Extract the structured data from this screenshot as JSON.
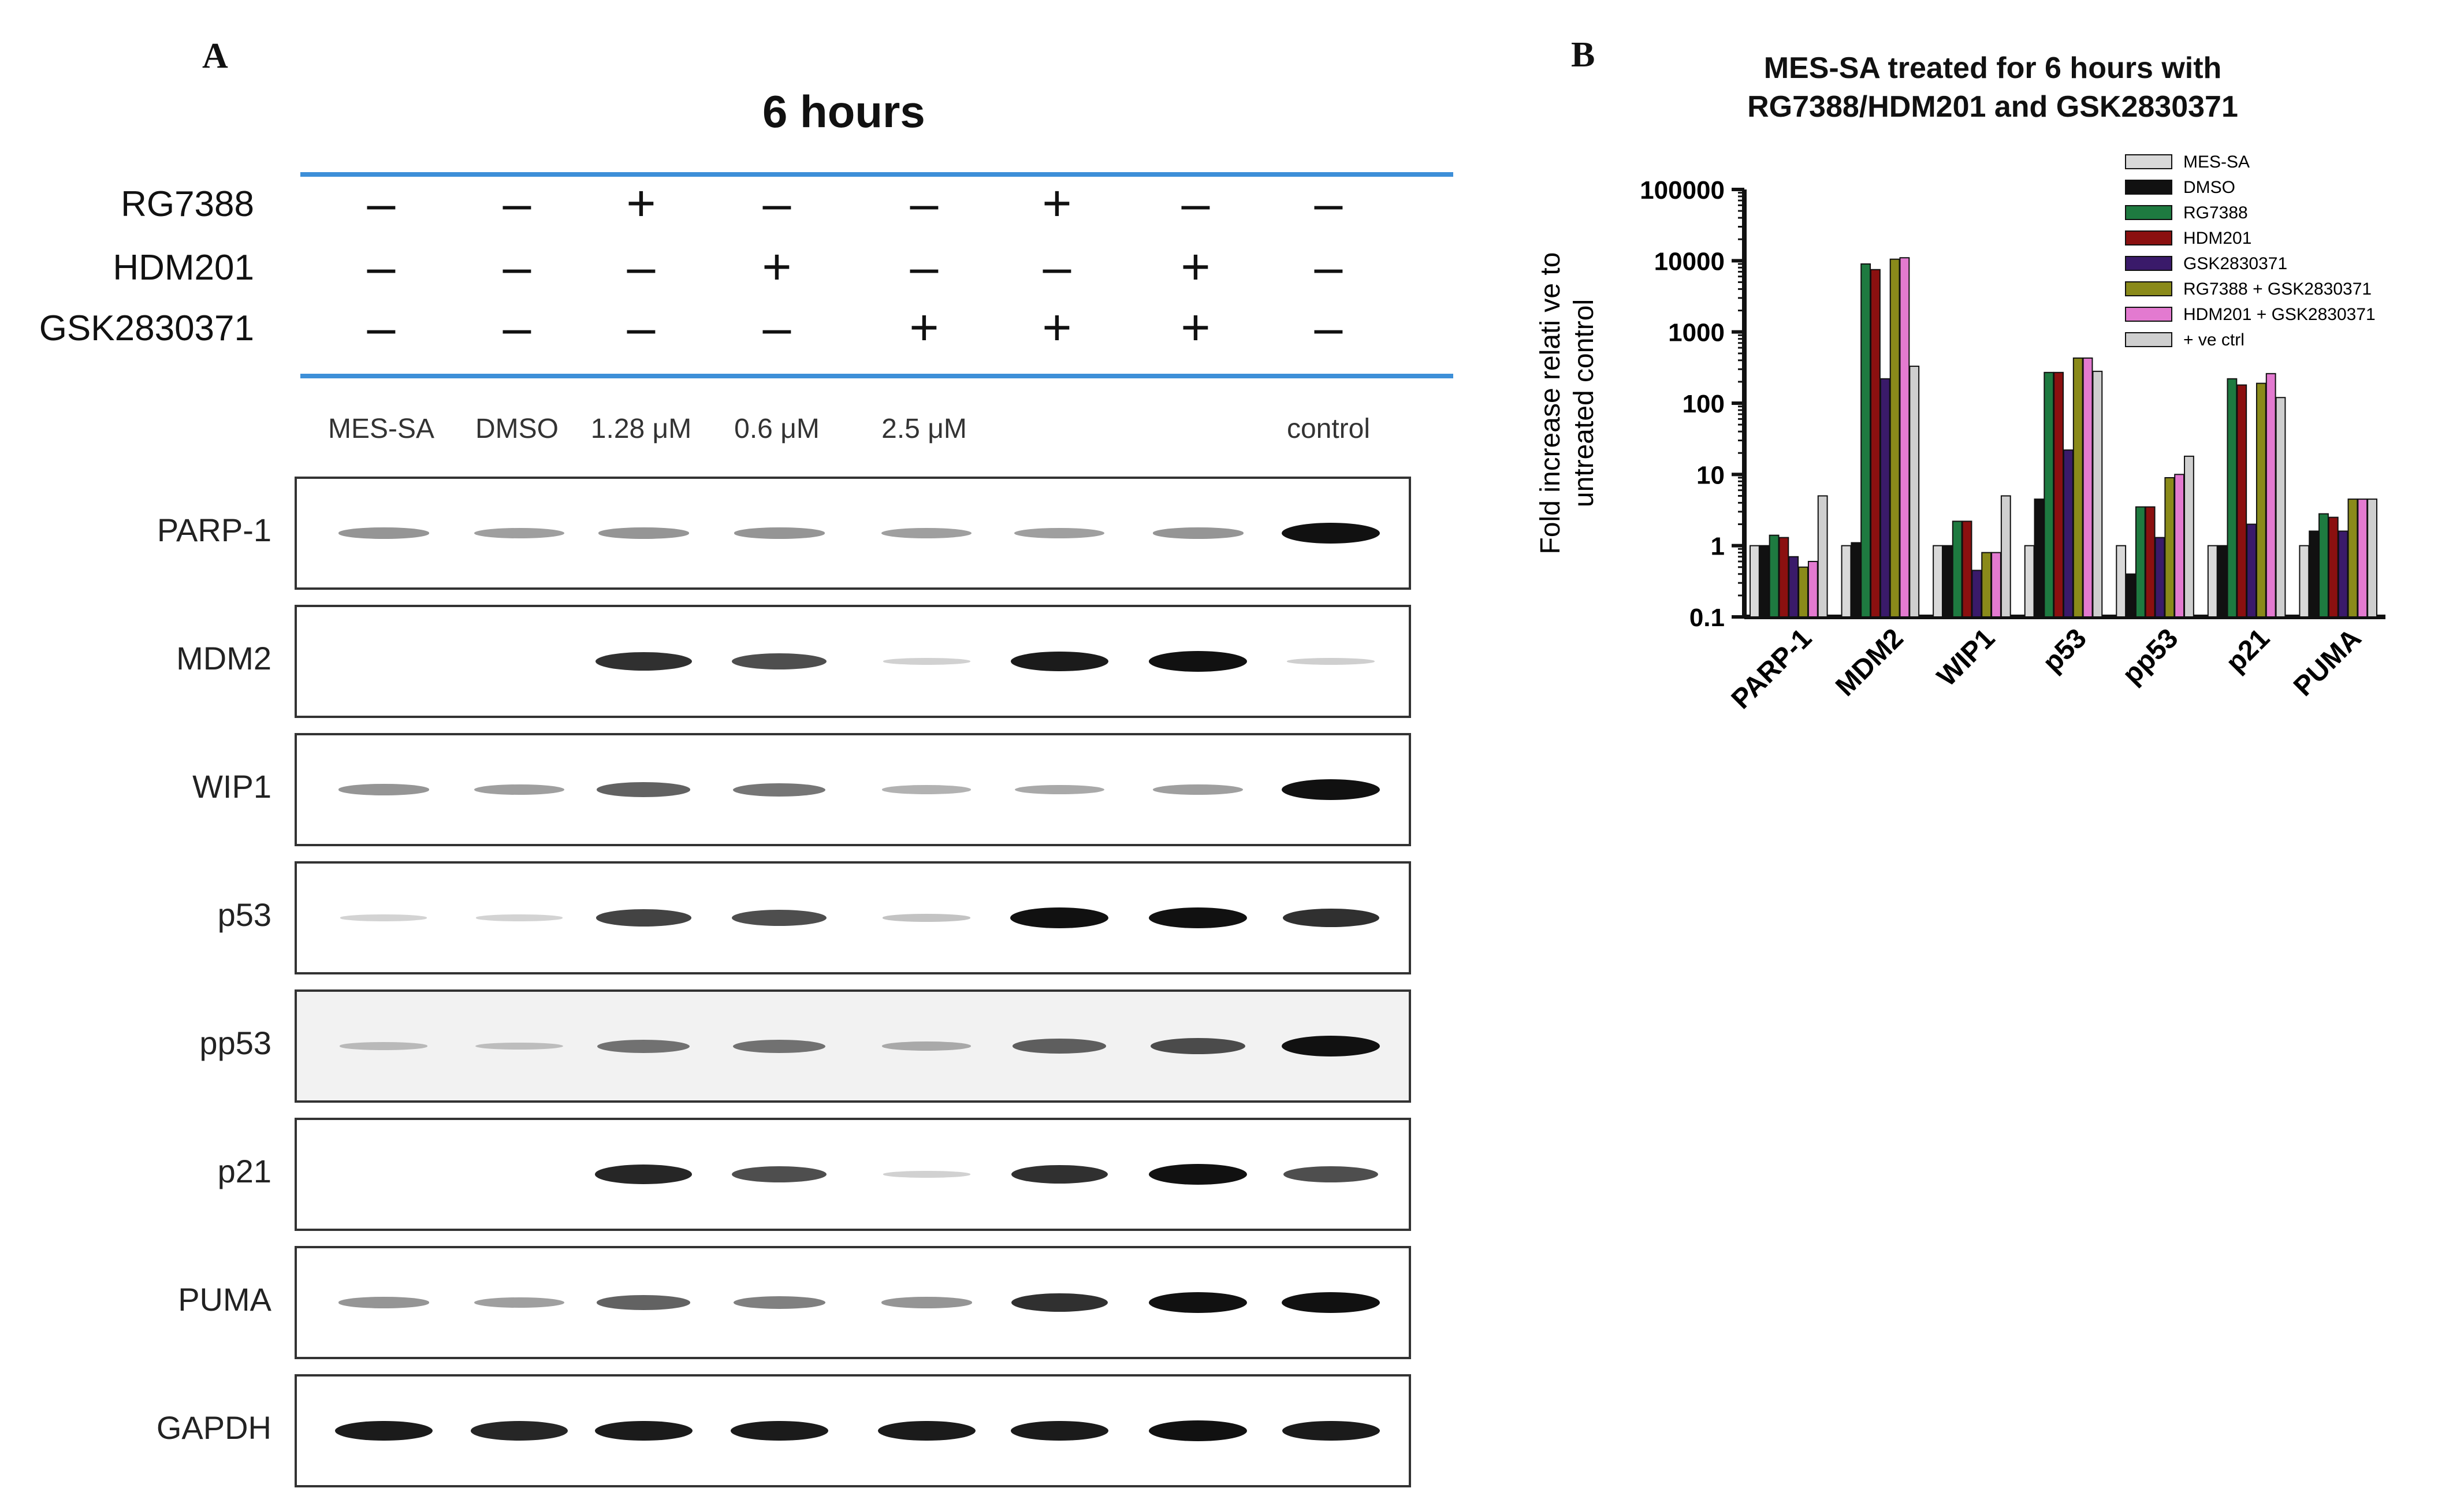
{
  "panels": {
    "a": "A",
    "b": "B"
  },
  "western_blot": {
    "title": "6 hours",
    "treatments": [
      {
        "name": "RG7388",
        "marks": [
          "-",
          "-",
          "+",
          "-",
          "-",
          "+",
          "-",
          "-"
        ]
      },
      {
        "name": "HDM201",
        "marks": [
          "-",
          "-",
          "-",
          "+",
          "-",
          "-",
          "+",
          "-"
        ]
      },
      {
        "name": "GSK2830371",
        "marks": [
          "-",
          "-",
          "-",
          "-",
          "+",
          "+",
          "+",
          "-"
        ]
      }
    ],
    "lanes": [
      "MES-SA",
      "DMSO",
      "1.28 μM",
      "0.6 μM",
      "2.5 μM",
      "",
      "",
      "control"
    ],
    "proteins": [
      {
        "name": "PARP-1",
        "bg": "#ffffff",
        "intensity": [
          0.35,
          0.3,
          0.35,
          0.35,
          0.3,
          0.3,
          0.35,
          1.0
        ]
      },
      {
        "name": "MDM2",
        "bg": "#ffffff",
        "intensity": [
          0,
          0,
          0.85,
          0.7,
          0.05,
          0.95,
          1.0,
          0.06
        ]
      },
      {
        "name": "WIP1",
        "bg": "#ffffff",
        "intensity": [
          0.35,
          0.3,
          0.6,
          0.5,
          0.2,
          0.25,
          0.3,
          1.0
        ]
      },
      {
        "name": "p53",
        "bg": "#ffffff",
        "intensity": [
          0.04,
          0.04,
          0.75,
          0.7,
          0.12,
          1.0,
          1.0,
          0.85
        ]
      },
      {
        "name": "pp53",
        "bg": "#f2f2f2",
        "intensity": [
          0.12,
          0.1,
          0.5,
          0.5,
          0.2,
          0.6,
          0.7,
          1.0
        ]
      },
      {
        "name": "p21",
        "bg": "#ffffff",
        "intensity": [
          0,
          0,
          0.9,
          0.7,
          0.05,
          0.85,
          1.0,
          0.7
        ]
      },
      {
        "name": "PUMA",
        "bg": "#ffffff",
        "intensity": [
          0.35,
          0.3,
          0.6,
          0.45,
          0.35,
          0.85,
          1.0,
          1.0
        ]
      },
      {
        "name": "GAPDH",
        "bg": "#ffffff",
        "intensity": [
          0.95,
          0.9,
          0.95,
          0.95,
          0.95,
          0.95,
          1.0,
          0.95
        ]
      }
    ]
  },
  "chart_data": {
    "type": "bar",
    "title": [
      "MES-SA treated for 6 hours with",
      "RG7388/HDM201 and GSK2830371"
    ],
    "ylabel": [
      "Fold increase relati ve to",
      "untreated control"
    ],
    "xlabel": "",
    "yscale": "log",
    "ylim": [
      0.1,
      100000
    ],
    "yticks": [
      "0.1",
      "1",
      "10",
      "100",
      "1000",
      "10000",
      "100000"
    ],
    "categories": [
      "PARP-1",
      "MDM2",
      "WIP1",
      "p53",
      "pp53",
      "p21",
      "PUMA"
    ],
    "legend_position": "top-right",
    "series": [
      {
        "name": "MES-SA",
        "color": "#d9d9d9",
        "values": [
          1,
          1,
          1,
          1,
          1,
          1,
          1
        ]
      },
      {
        "name": "DMSO",
        "color": "#111111",
        "values": [
          1,
          1.1,
          1,
          4.5,
          0.4,
          1,
          1.6
        ]
      },
      {
        "name": "RG7388",
        "color": "#1e7a40",
        "values": [
          1.4,
          9000,
          2.2,
          270,
          3.5,
          220,
          2.8
        ]
      },
      {
        "name": "HDM201",
        "color": "#8b1010",
        "values": [
          1.3,
          7500,
          2.2,
          270,
          3.5,
          180,
          2.5
        ]
      },
      {
        "name": "GSK2830371",
        "color": "#3a1a6a",
        "values": [
          0.7,
          220,
          0.45,
          22,
          1.3,
          2,
          1.6
        ]
      },
      {
        "name": "RG7388 + GSK2830371",
        "color": "#8a8a1a",
        "values": [
          0.5,
          10500,
          0.8,
          430,
          9,
          190,
          4.5
        ]
      },
      {
        "name": "HDM201 + GSK2830371",
        "color": "#e37ad0",
        "values": [
          0.6,
          11000,
          0.8,
          430,
          10,
          260,
          4.5
        ]
      },
      {
        "name": "+ ve ctrl",
        "color": "#cfcfcf",
        "values": [
          5,
          330,
          5,
          280,
          18,
          120,
          4.5
        ]
      }
    ]
  }
}
